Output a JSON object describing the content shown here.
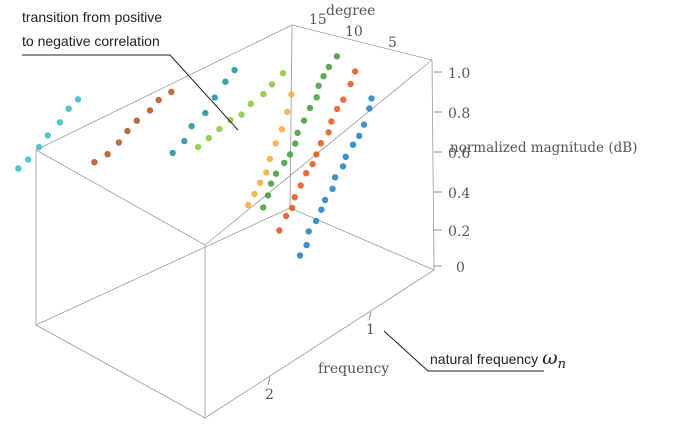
{
  "chart_data": {
    "type": "scatter",
    "title": "",
    "axes": {
      "degree": {
        "label": "degree",
        "ticks": [
          "15",
          "10",
          "5"
        ]
      },
      "magnitude": {
        "label": "normalized magnitude (dB)",
        "ticks": [
          "1.0",
          "0.8",
          "0.6",
          "0.4",
          "0.2",
          "0"
        ]
      },
      "frequency": {
        "label": "frequency",
        "ticks": [
          "1",
          "2"
        ]
      }
    },
    "annotations": [
      {
        "id": "transition",
        "lines": [
          "transition from positive",
          "to negative correlation"
        ]
      },
      {
        "id": "natural",
        "text": "natural frequency ",
        "symbol": "ω",
        "subscript": "n"
      }
    ],
    "series": [
      {
        "color": "#1b7fbd",
        "degree": 1,
        "points": [
          [
            0.55,
            0.98
          ],
          [
            0.6,
            0.93
          ],
          [
            0.65,
            0.88
          ],
          [
            0.7,
            0.84
          ],
          [
            0.75,
            0.8
          ],
          [
            0.8,
            0.76
          ],
          [
            0.85,
            0.72
          ],
          [
            0.9,
            0.68
          ],
          [
            0.95,
            0.64
          ],
          [
            1.0,
            0.6
          ],
          [
            1.05,
            0.56
          ],
          [
            1.1,
            0.52
          ],
          [
            1.15,
            0.48
          ],
          [
            1.2,
            0.44
          ],
          [
            1.25,
            0.4
          ]
        ]
      },
      {
        "color": "#e2531b",
        "degree": 3,
        "points": [
          [
            0.55,
            0.96
          ],
          [
            0.6,
            0.91
          ],
          [
            0.65,
            0.86
          ],
          [
            0.7,
            0.82
          ],
          [
            0.75,
            0.78
          ],
          [
            0.8,
            0.74
          ],
          [
            0.85,
            0.7
          ],
          [
            0.9,
            0.66
          ],
          [
            0.95,
            0.62
          ],
          [
            1.0,
            0.58
          ],
          [
            1.05,
            0.54
          ],
          [
            1.1,
            0.5
          ],
          [
            1.15,
            0.46
          ],
          [
            1.2,
            0.42
          ],
          [
            1.25,
            0.38
          ]
        ]
      },
      {
        "color": "#3f9a3a",
        "degree": 5,
        "points": [
          [
            0.55,
            0.9
          ],
          [
            0.6,
            0.86
          ],
          [
            0.65,
            0.82
          ],
          [
            0.7,
            0.78
          ],
          [
            0.75,
            0.74
          ],
          [
            0.8,
            0.7
          ],
          [
            0.85,
            0.66
          ],
          [
            0.9,
            0.62
          ],
          [
            0.95,
            0.58
          ],
          [
            1.0,
            0.54
          ],
          [
            1.05,
            0.5
          ],
          [
            1.1,
            0.46
          ],
          [
            1.15,
            0.42
          ],
          [
            1.2,
            0.38
          ],
          [
            1.25,
            0.34
          ]
        ]
      },
      {
        "color": "#f2a93b",
        "degree": 7,
        "points": [
          [
            0.8,
            0.62
          ],
          [
            0.85,
            0.55
          ],
          [
            0.9,
            0.48
          ],
          [
            0.95,
            0.42
          ],
          [
            1.0,
            0.36
          ],
          [
            1.05,
            0.3
          ],
          [
            1.1,
            0.26
          ],
          [
            1.15,
            0.22
          ],
          [
            1.2,
            0.18
          ]
        ]
      },
      {
        "color": "#8cc43c",
        "degree": 9,
        "points": [
          [
            0.7,
            0.55
          ],
          [
            0.8,
            0.52
          ],
          [
            0.9,
            0.5
          ],
          [
            1.0,
            0.49
          ],
          [
            1.1,
            0.48
          ],
          [
            1.2,
            0.47
          ],
          [
            1.3,
            0.46
          ],
          [
            1.4,
            0.45
          ],
          [
            1.5,
            0.44
          ]
        ]
      },
      {
        "color": "#b5521c",
        "degree": 11,
        "points": [
          [
            1.6,
            0.62
          ],
          [
            1.7,
            0.6
          ],
          [
            1.8,
            0.58
          ],
          [
            1.9,
            0.56
          ],
          [
            2.0,
            0.54
          ],
          [
            2.1,
            0.52
          ],
          [
            2.2,
            0.5
          ],
          [
            2.3,
            0.48
          ]
        ]
      },
      {
        "color": "#1c8fa0",
        "degree": 13,
        "points": [
          [
            0.8,
            0.3
          ],
          [
            0.9,
            0.26
          ],
          [
            1.0,
            0.22
          ],
          [
            1.1,
            0.18
          ],
          [
            1.2,
            0.14
          ],
          [
            1.3,
            0.1
          ],
          [
            1.4,
            0.07
          ]
        ]
      },
      {
        "color": "#2ebfc6",
        "degree": 15,
        "points": [
          [
            2.1,
            0.45
          ],
          [
            2.2,
            0.42
          ],
          [
            2.3,
            0.39
          ],
          [
            2.4,
            0.36
          ],
          [
            2.5,
            0.33
          ],
          [
            2.6,
            0.3
          ],
          [
            2.7,
            0.28
          ]
        ]
      }
    ]
  }
}
